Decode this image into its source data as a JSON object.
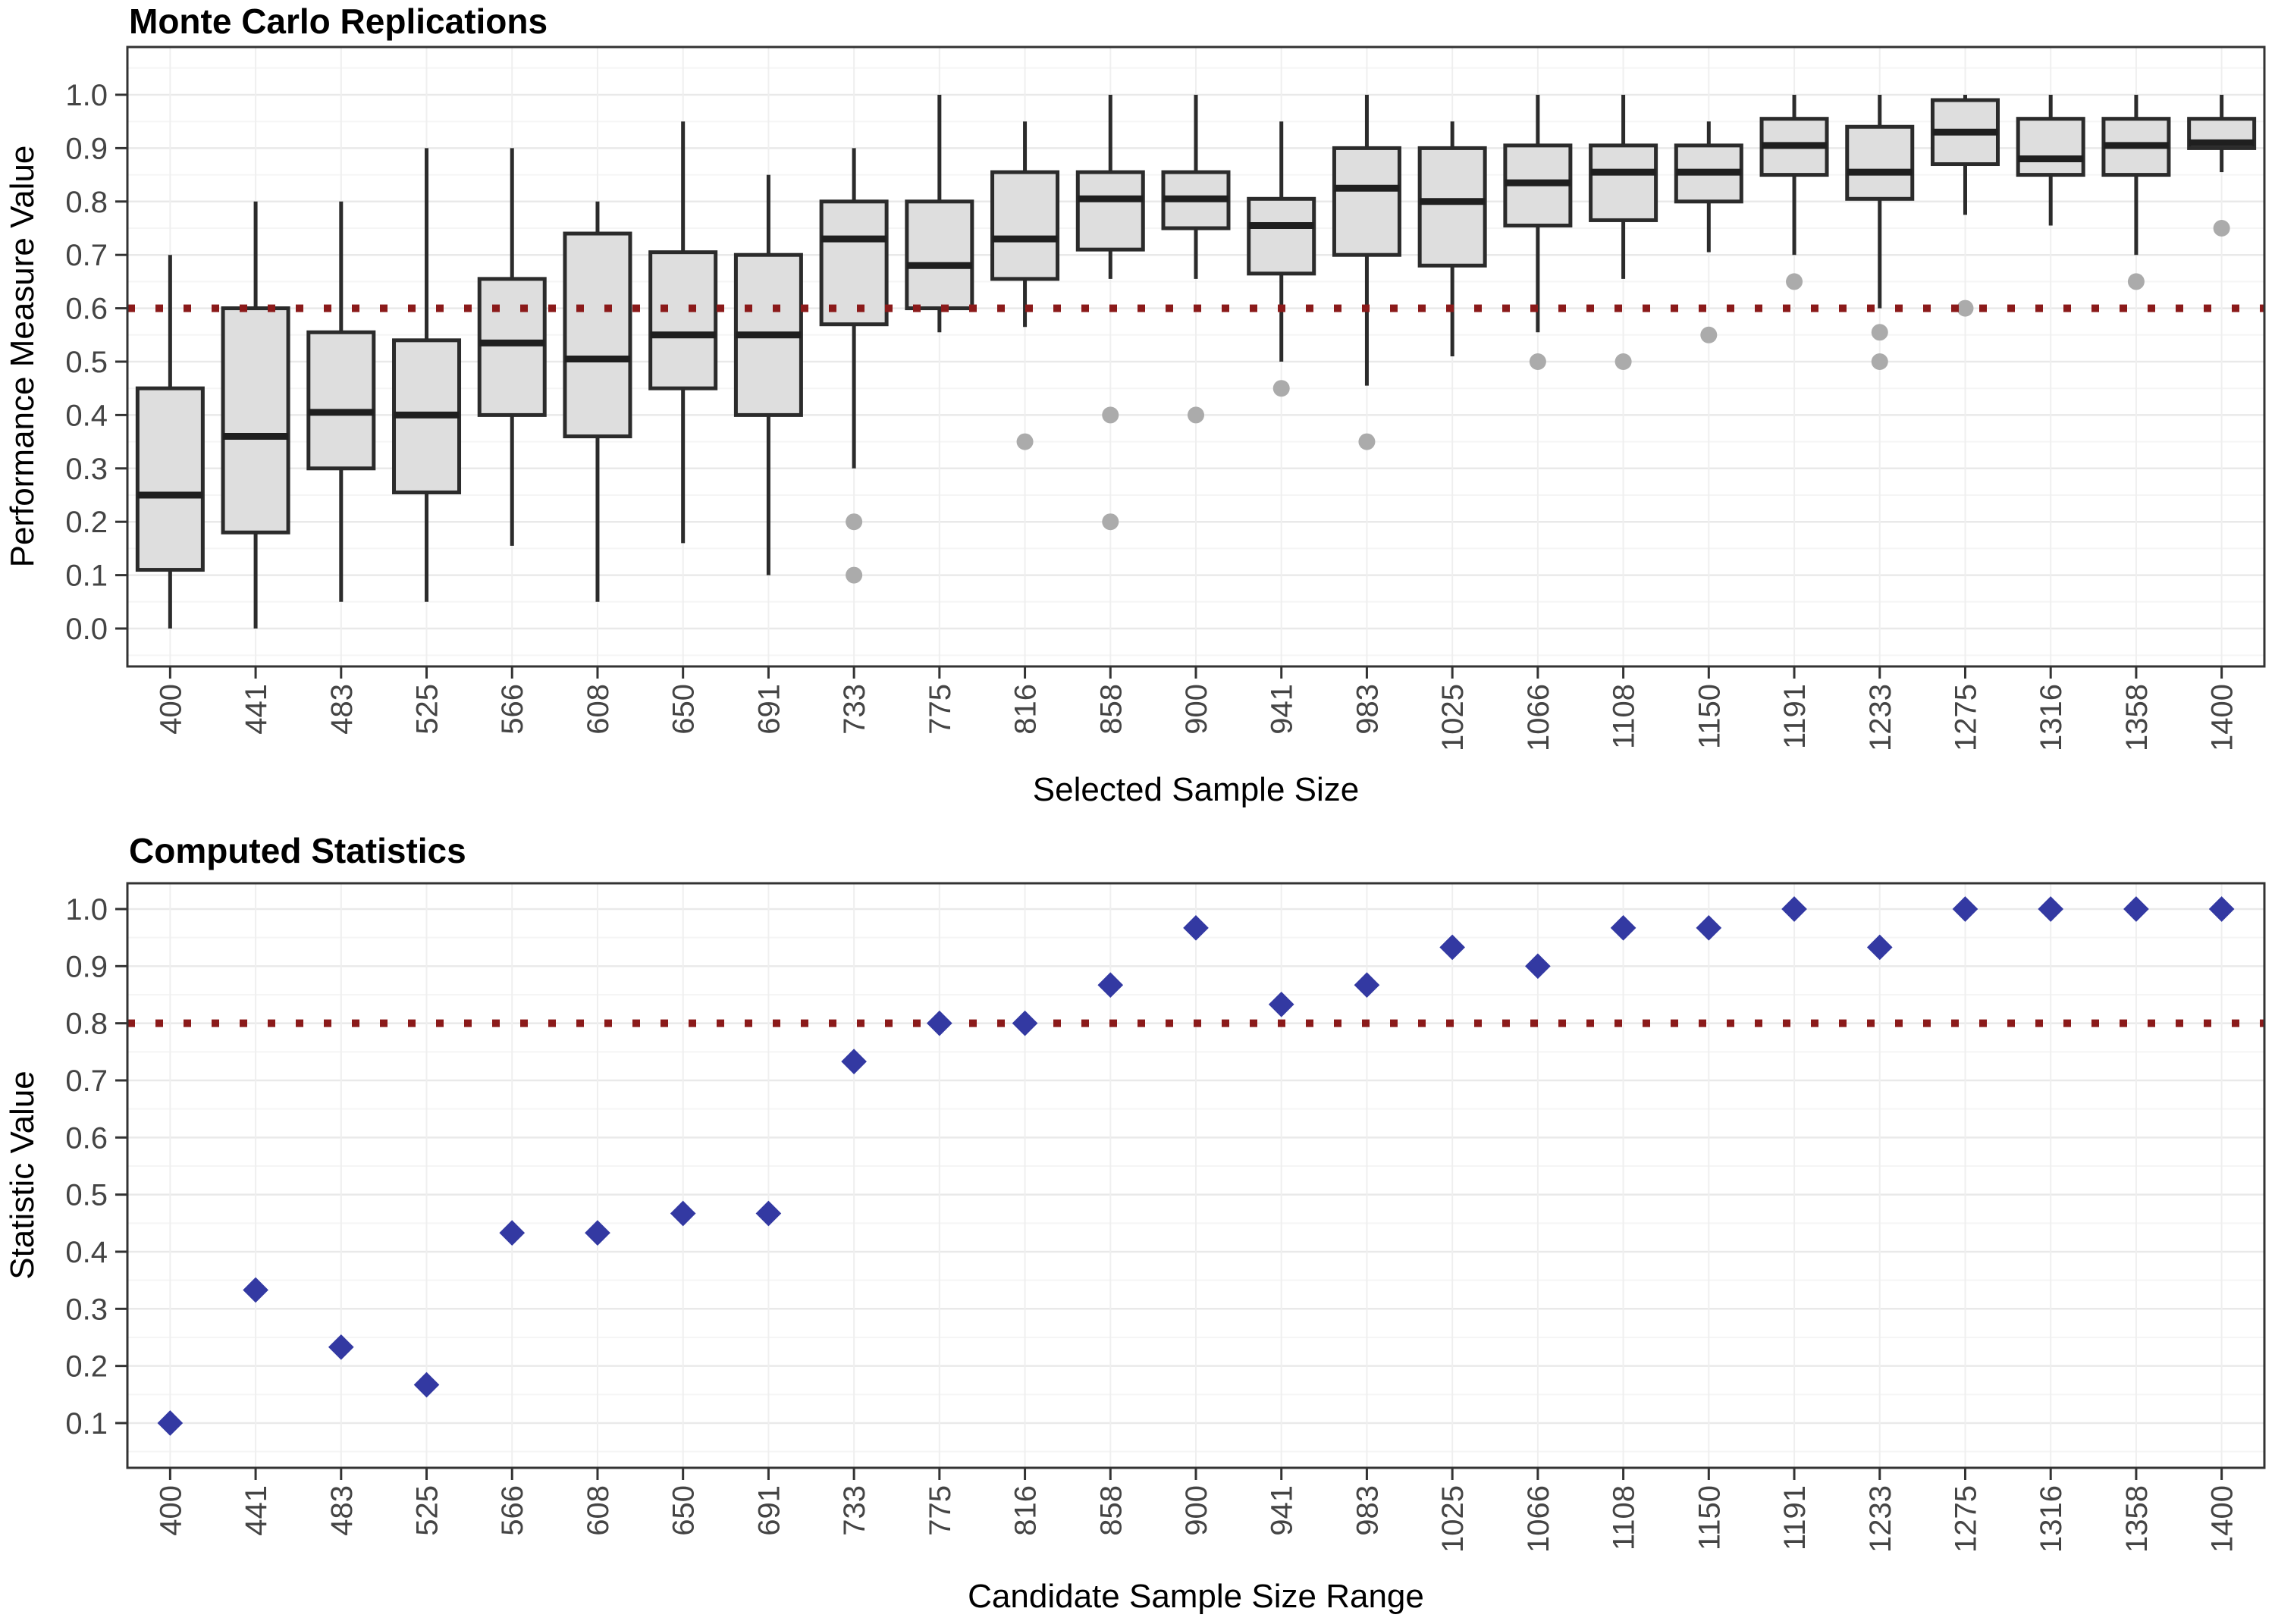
{
  "page": {
    "background": "#ffffff"
  },
  "colors": {
    "box_fill": "#dedede",
    "box_border": "#2b2b2b",
    "median": "#1f1f1f",
    "whisker": "#2b2b2b",
    "outlier": "#ababab",
    "refline": "#8b1a1a",
    "diamond": "#3339a2",
    "grid_major": "#e9e9e9",
    "grid_minor": "#f5f5f5",
    "grid_vertical": "#efefef",
    "panel_border": "#333333",
    "tick_mark": "#333333",
    "tick_label": "#444444",
    "title_text": "#000000"
  },
  "chart_data": [
    {
      "type": "boxplot",
      "title": "Monte Carlo Replications",
      "xlabel": "Selected Sample Size",
      "ylabel": "Performance Measure Value",
      "legend_position": "none",
      "grid": true,
      "categories": [
        "400",
        "441",
        "483",
        "525",
        "566",
        "608",
        "650",
        "691",
        "733",
        "775",
        "816",
        "858",
        "900",
        "941",
        "983",
        "1025",
        "1066",
        "1108",
        "1150",
        "1191",
        "1233",
        "1275",
        "1316",
        "1358",
        "1400"
      ],
      "ytick_labels": [
        "0.0",
        "0.1",
        "0.2",
        "0.3",
        "0.4",
        "0.5",
        "0.6",
        "0.7",
        "0.8",
        "0.9",
        "1.0"
      ],
      "ytick_values": [
        0.0,
        0.1,
        0.2,
        0.3,
        0.4,
        0.5,
        0.6,
        0.7,
        0.8,
        0.9,
        1.0
      ],
      "ylim": [
        -0.07,
        1.09
      ],
      "refline": 0.6,
      "boxes": [
        {
          "lo": 0.0,
          "q1": 0.11,
          "med": 0.25,
          "q3": 0.45,
          "hi": 0.7,
          "out": []
        },
        {
          "lo": 0.0,
          "q1": 0.18,
          "med": 0.36,
          "q3": 0.6,
          "hi": 0.8,
          "out": []
        },
        {
          "lo": 0.05,
          "q1": 0.3,
          "med": 0.405,
          "q3": 0.555,
          "hi": 0.8,
          "out": []
        },
        {
          "lo": 0.05,
          "q1": 0.255,
          "med": 0.4,
          "q3": 0.54,
          "hi": 0.9,
          "out": []
        },
        {
          "lo": 0.155,
          "q1": 0.4,
          "med": 0.535,
          "q3": 0.655,
          "hi": 0.9,
          "out": []
        },
        {
          "lo": 0.05,
          "q1": 0.36,
          "med": 0.505,
          "q3": 0.74,
          "hi": 0.8,
          "out": []
        },
        {
          "lo": 0.16,
          "q1": 0.45,
          "med": 0.55,
          "q3": 0.705,
          "hi": 0.95,
          "out": []
        },
        {
          "lo": 0.1,
          "q1": 0.4,
          "med": 0.55,
          "q3": 0.7,
          "hi": 0.85,
          "out": []
        },
        {
          "lo": 0.3,
          "q1": 0.57,
          "med": 0.73,
          "q3": 0.8,
          "hi": 0.9,
          "out": [
            0.2,
            0.1
          ]
        },
        {
          "lo": 0.555,
          "q1": 0.6,
          "med": 0.68,
          "q3": 0.8,
          "hi": 1.0,
          "out": []
        },
        {
          "lo": 0.565,
          "q1": 0.655,
          "med": 0.73,
          "q3": 0.855,
          "hi": 0.95,
          "out": [
            0.35
          ]
        },
        {
          "lo": 0.655,
          "q1": 0.71,
          "med": 0.805,
          "q3": 0.855,
          "hi": 1.0,
          "out": [
            0.4,
            0.2
          ]
        },
        {
          "lo": 0.655,
          "q1": 0.75,
          "med": 0.805,
          "q3": 0.855,
          "hi": 1.0,
          "out": [
            0.4
          ]
        },
        {
          "lo": 0.5,
          "q1": 0.665,
          "med": 0.755,
          "q3": 0.805,
          "hi": 0.95,
          "out": [
            0.45
          ]
        },
        {
          "lo": 0.455,
          "q1": 0.7,
          "med": 0.825,
          "q3": 0.9,
          "hi": 1.0,
          "out": [
            0.35
          ]
        },
        {
          "lo": 0.51,
          "q1": 0.68,
          "med": 0.8,
          "q3": 0.9,
          "hi": 0.95,
          "out": []
        },
        {
          "lo": 0.555,
          "q1": 0.755,
          "med": 0.835,
          "q3": 0.905,
          "hi": 1.0,
          "out": [
            0.5
          ]
        },
        {
          "lo": 0.655,
          "q1": 0.765,
          "med": 0.855,
          "q3": 0.905,
          "hi": 1.0,
          "out": [
            0.5
          ]
        },
        {
          "lo": 0.705,
          "q1": 0.8,
          "med": 0.855,
          "q3": 0.905,
          "hi": 0.95,
          "out": [
            0.55
          ]
        },
        {
          "lo": 0.7,
          "q1": 0.85,
          "med": 0.905,
          "q3": 0.955,
          "hi": 1.0,
          "out": [
            0.65
          ]
        },
        {
          "lo": 0.6,
          "q1": 0.805,
          "med": 0.855,
          "q3": 0.94,
          "hi": 1.0,
          "out": [
            0.555,
            0.5
          ]
        },
        {
          "lo": 0.775,
          "q1": 0.87,
          "med": 0.93,
          "q3": 0.99,
          "hi": 1.0,
          "out": [
            0.6
          ]
        },
        {
          "lo": 0.755,
          "q1": 0.85,
          "med": 0.88,
          "q3": 0.955,
          "hi": 1.0,
          "out": []
        },
        {
          "lo": 0.7,
          "q1": 0.85,
          "med": 0.905,
          "q3": 0.955,
          "hi": 1.0,
          "out": [
            0.65
          ]
        },
        {
          "lo": 0.855,
          "q1": 0.9,
          "med": 0.91,
          "q3": 0.955,
          "hi": 1.0,
          "out": [
            0.75
          ]
        }
      ]
    },
    {
      "type": "scatter",
      "title": "Computed Statistics",
      "xlabel": "Candidate Sample Size Range",
      "ylabel": "Statistic Value",
      "legend_position": "none",
      "grid": true,
      "marker": "diamond",
      "categories": [
        "400",
        "441",
        "483",
        "525",
        "566",
        "608",
        "650",
        "691",
        "733",
        "775",
        "816",
        "858",
        "900",
        "941",
        "983",
        "1025",
        "1066",
        "1108",
        "1150",
        "1191",
        "1233",
        "1275",
        "1316",
        "1358",
        "1400"
      ],
      "ytick_labels": [
        "0.1",
        "0.2",
        "0.3",
        "0.4",
        "0.5",
        "0.6",
        "0.7",
        "0.8",
        "0.9",
        "1.0"
      ],
      "ytick_values": [
        0.1,
        0.2,
        0.3,
        0.4,
        0.5,
        0.6,
        0.7,
        0.8,
        0.9,
        1.0
      ],
      "ylim": [
        0.02,
        1.045
      ],
      "refline": 0.8,
      "values": [
        0.1,
        0.333,
        0.233,
        0.167,
        0.433,
        0.433,
        0.467,
        0.467,
        0.733,
        0.8,
        0.8,
        0.867,
        0.967,
        0.833,
        0.867,
        0.933,
        0.9,
        0.967,
        0.967,
        1.0,
        0.933,
        1.0,
        1.0,
        1.0,
        1.0
      ]
    }
  ]
}
